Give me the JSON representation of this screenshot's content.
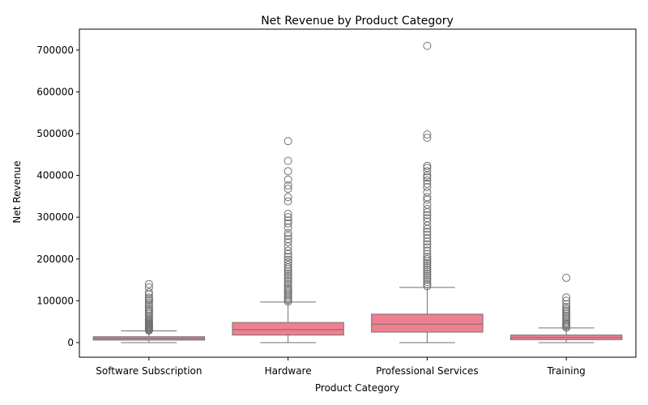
{
  "chart_data": {
    "type": "boxplot",
    "title": "Net Revenue by Product Category",
    "xlabel": "Product Category",
    "ylabel": "Net Revenue",
    "ylim": [
      -35000,
      750000
    ],
    "yticks": [
      0,
      100000,
      200000,
      300000,
      400000,
      500000,
      600000,
      700000
    ],
    "grid": false,
    "colors": {
      "box": "#f17f91",
      "line": "#707070"
    },
    "categories": [
      "Software Subscription",
      "Hardware",
      "Professional Services",
      "Training"
    ],
    "boxes": [
      {
        "category": "Software Subscription",
        "whisker_low": 0,
        "q1": 6000,
        "median": 10000,
        "q3": 14000,
        "whisker_high": 28000,
        "outliers": [
          29000,
          31000,
          33000,
          35000,
          37000,
          39000,
          41000,
          43000,
          45000,
          47000,
          50000,
          53000,
          56000,
          60000,
          64000,
          68000,
          72000,
          76000,
          80000,
          85000,
          90000,
          95000,
          100000,
          104000,
          108000,
          115000,
          120000,
          132000,
          140000
        ]
      },
      {
        "category": "Hardware",
        "whisker_low": 0,
        "q1": 18000,
        "median": 31000,
        "q3": 48000,
        "whisker_high": 97000,
        "outliers": [
          98000,
          102000,
          106000,
          110000,
          114000,
          118000,
          122000,
          126000,
          130000,
          135000,
          140000,
          145000,
          150000,
          155000,
          160000,
          165000,
          170000,
          175000,
          180000,
          186000,
          192000,
          198000,
          205000,
          212000,
          220000,
          230000,
          240000,
          248000,
          255000,
          262000,
          275000,
          285000,
          292000,
          300000,
          308000,
          338000,
          348000,
          368000,
          376000,
          390000,
          410000,
          435000,
          482000
        ]
      },
      {
        "category": "Professional Services",
        "whisker_low": 0,
        "q1": 25000,
        "median": 44000,
        "q3": 68000,
        "whisker_high": 132000,
        "outliers": [
          135000,
          140000,
          145000,
          150000,
          155000,
          160000,
          165000,
          170000,
          175000,
          180000,
          185000,
          190000,
          195000,
          200000,
          205000,
          212000,
          220000,
          228000,
          235000,
          242000,
          250000,
          258000,
          265000,
          272000,
          280000,
          290000,
          298000,
          305000,
          312000,
          320000,
          330000,
          342000,
          348000,
          360000,
          372000,
          380000,
          388000,
          395000,
          400000,
          410000,
          418000,
          423000,
          490000,
          498000,
          710000
        ]
      },
      {
        "category": "Training",
        "whisker_low": 0,
        "q1": 7000,
        "median": 12000,
        "q3": 18000,
        "whisker_high": 35000,
        "outliers": [
          36000,
          39000,
          42000,
          45000,
          48000,
          52000,
          56000,
          60000,
          64000,
          68000,
          72000,
          76000,
          80000,
          85000,
          92000,
          100000,
          108000,
          155000
        ]
      }
    ]
  }
}
